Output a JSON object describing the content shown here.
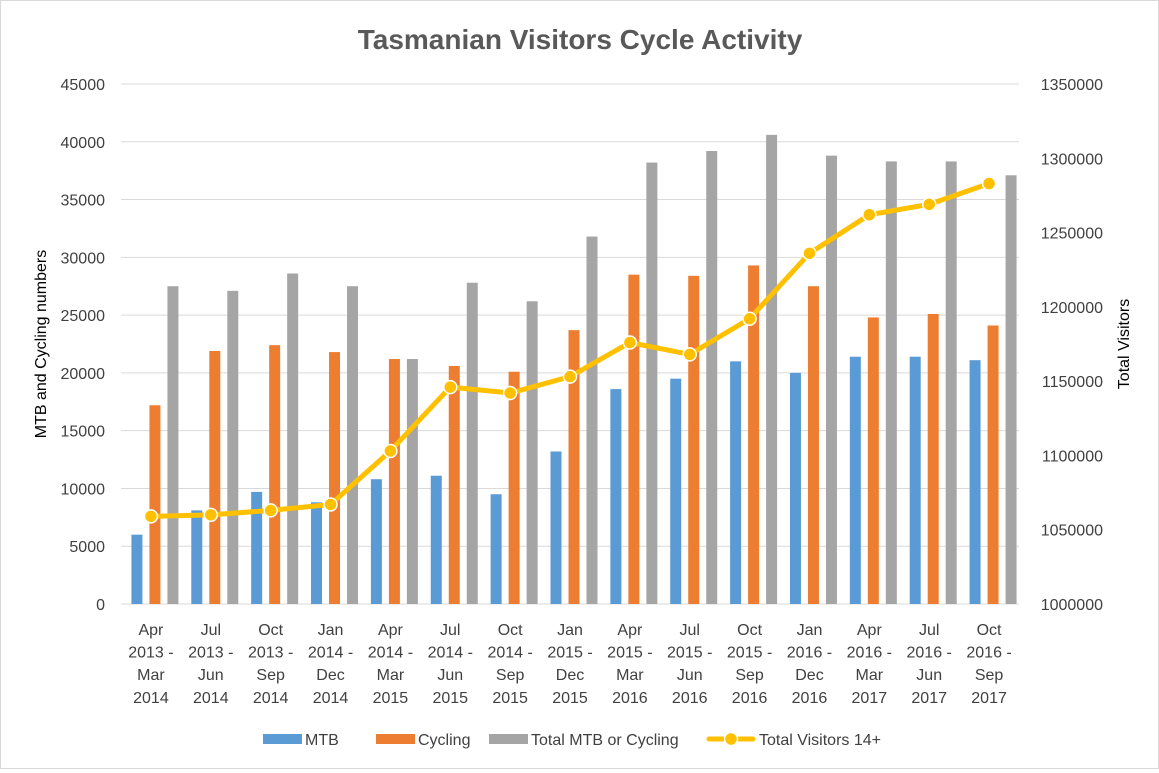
{
  "chart_data": {
    "type": "bar",
    "title": "Tasmanian Visitors Cycle Activity",
    "ylabel": "MTB and Cycling numbers",
    "y2label": "Total Visitors",
    "xlabel": "",
    "ylim": [
      0,
      45000
    ],
    "y2lim": [
      1000000,
      1350000
    ],
    "yticks": [
      "0",
      "5000",
      "10000",
      "15000",
      "20000",
      "25000",
      "30000",
      "35000",
      "40000",
      "45000"
    ],
    "y2ticks": [
      "1000000",
      "1050000",
      "1100000",
      "1150000",
      "1200000",
      "1250000",
      "1300000",
      "1350000"
    ],
    "grid": true,
    "legend_position": "bottom",
    "categories": [
      [
        "Apr",
        "2013 -",
        "Mar",
        "2014"
      ],
      [
        "Jul",
        "2013 -",
        "Jun",
        "2014"
      ],
      [
        "Oct",
        "2013 -",
        "Sep",
        "2014"
      ],
      [
        "Jan",
        "2014 -",
        "Dec",
        "2014"
      ],
      [
        "Apr",
        "2014 -",
        "Mar",
        "2015"
      ],
      [
        "Jul",
        "2014 -",
        "Jun",
        "2015"
      ],
      [
        "Oct",
        "2014 -",
        "Sep",
        "2015"
      ],
      [
        "Jan",
        "2015 -",
        "Dec",
        "2015"
      ],
      [
        "Apr",
        "2015 -",
        "Mar",
        "2016"
      ],
      [
        "Jul",
        "2015 -",
        "Jun",
        "2016"
      ],
      [
        "Oct",
        "2015 -",
        "Sep",
        "2016"
      ],
      [
        "Jan",
        "2016 -",
        "Dec",
        "2016"
      ],
      [
        "Apr",
        "2016 -",
        "Mar",
        "2017"
      ],
      [
        "Jul",
        "2016 -",
        "Jun",
        "2017"
      ],
      [
        "Oct",
        "2016 -",
        "Sep",
        "2017"
      ]
    ],
    "series": [
      {
        "name": "MTB",
        "kind": "bar",
        "axis": "left",
        "color": "#5b9bd5",
        "values": [
          6000,
          8100,
          9700,
          8800,
          10800,
          11100,
          9500,
          13200,
          18600,
          19500,
          21000,
          20000,
          21400,
          21400,
          21100
        ]
      },
      {
        "name": "Cycling",
        "kind": "bar",
        "axis": "left",
        "color": "#ed7d31",
        "values": [
          17200,
          21900,
          22400,
          21800,
          21200,
          20600,
          20100,
          23700,
          28500,
          28400,
          29300,
          27500,
          24800,
          25100,
          24100
        ]
      },
      {
        "name": "Total MTB or Cycling",
        "kind": "bar",
        "axis": "left",
        "color": "#a5a5a5",
        "values": [
          27500,
          27100,
          28600,
          27500,
          21200,
          27800,
          26200,
          31800,
          38200,
          39200,
          40600,
          38800,
          38300,
          38300,
          37100
        ]
      },
      {
        "name": "Total Visitors 14+",
        "kind": "line",
        "axis": "right",
        "color": "#ffc000",
        "values": [
          1059000,
          1060000,
          1063000,
          1067000,
          1103000,
          1146000,
          1142000,
          1153000,
          1176000,
          1168000,
          1192000,
          1236000,
          1262000,
          1269000,
          1283000
        ]
      }
    ]
  }
}
